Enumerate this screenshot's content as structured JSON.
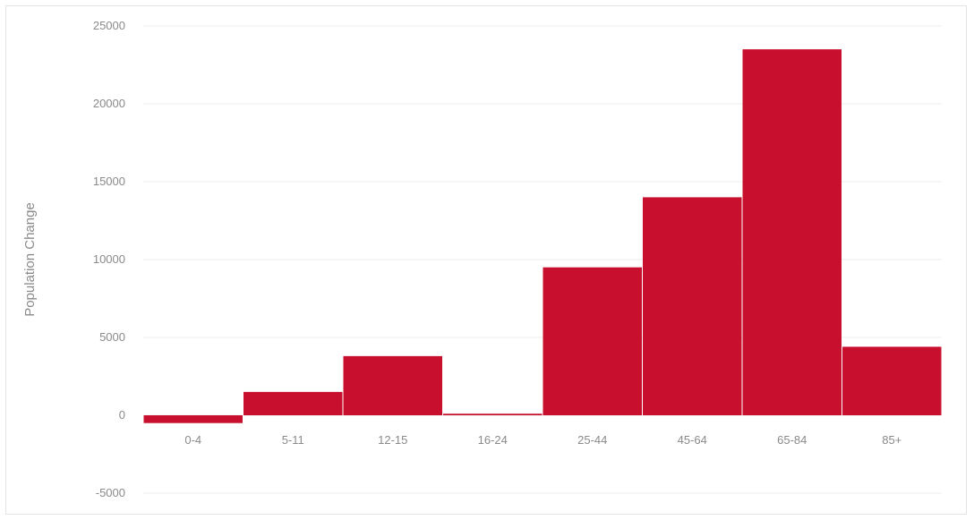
{
  "chart_data": {
    "type": "bar",
    "categories": [
      "0-4",
      "5-11",
      "12-15",
      "16-24",
      "25-44",
      "45-64",
      "65-84",
      "85+"
    ],
    "values": [
      -500,
      1500,
      3800,
      100,
      9500,
      14000,
      23500,
      4400
    ],
    "ylabel": "Population Change",
    "ylim": [
      -5000,
      25000
    ],
    "yticks": [
      25000,
      20000,
      15000,
      10000,
      5000,
      0,
      -5000
    ],
    "grid": true,
    "bar_color": "#c8102e",
    "grid_color": "#ececec"
  }
}
